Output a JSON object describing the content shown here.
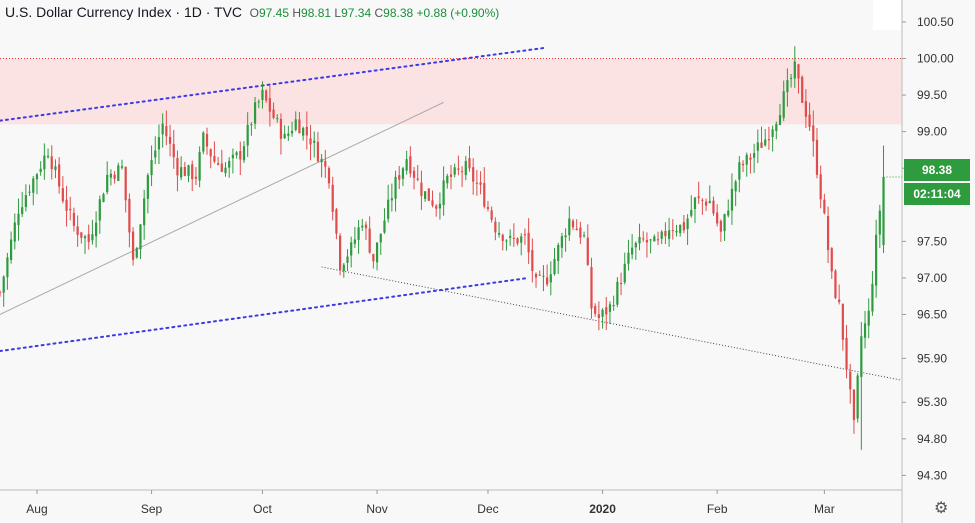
{
  "legend": {
    "symbol": "U.S. Dollar Currency Index · 1D · TVC",
    "open_label": "O",
    "open": "97.45",
    "high_label": "H",
    "high": "98.81",
    "low_label": "L",
    "low": "97.34",
    "close_label": "C",
    "close": "98.38",
    "change": "+0.88 (+0.90%)"
  },
  "price_tag": {
    "last": "98.38",
    "countdown": "02:11:04"
  },
  "colors": {
    "up": "#2e9b3f",
    "down": "#e04b4b",
    "bg": "#f8f8f8",
    "zone": "#fbe3e3",
    "resistance": "#e33",
    "channel": "#3b3be6",
    "trend": "#aaaaaa",
    "support": "#444444"
  },
  "icons": {
    "settings": "gear-icon"
  },
  "chart_data": {
    "type": "candlestick",
    "ylim": [
      94.1,
      100.8
    ],
    "yticks": [
      "100.50",
      "100.00",
      "99.50",
      "99.00",
      "98.50",
      "97.50",
      "97.00",
      "96.50",
      "95.90",
      "95.30",
      "94.80",
      "94.30"
    ],
    "xticks": [
      {
        "label": "Aug",
        "day": 10
      },
      {
        "label": "Sep",
        "day": 41
      },
      {
        "label": "Oct",
        "day": 71
      },
      {
        "label": "Nov",
        "day": 102
      },
      {
        "label": "Dec",
        "day": 132
      },
      {
        "label": "2020",
        "day": 163,
        "bold": true
      },
      {
        "label": "Feb",
        "day": 194
      },
      {
        "label": "Mar",
        "day": 223
      }
    ],
    "x_range": [
      0,
      244
    ],
    "resistance_zone": [
      99.1,
      100.0
    ],
    "resistance_line": 100.0,
    "lines": [
      {
        "name": "upper-channel",
        "style": "blue-dotted",
        "p1": [
          0,
          99.15
        ],
        "p2": [
          148,
          100.15
        ]
      },
      {
        "name": "lower-channel",
        "style": "blue-dotted",
        "p1": [
          0,
          96.0
        ],
        "p2": [
          143,
          97.0
        ]
      },
      {
        "name": "rising-trendline",
        "style": "gray-solid",
        "p1": [
          0,
          96.5
        ],
        "p2": [
          120,
          99.4
        ]
      },
      {
        "name": "support-line",
        "style": "black-dotted",
        "p1": [
          87,
          97.15
        ],
        "p2": [
          244,
          95.6
        ]
      }
    ],
    "anchors": [
      [
        0,
        96.8
      ],
      [
        5,
        97.95
      ],
      [
        10,
        98.45
      ],
      [
        13,
        98.75
      ],
      [
        17,
        98.1
      ],
      [
        20,
        97.7
      ],
      [
        24,
        97.5
      ],
      [
        29,
        98.4
      ],
      [
        33,
        98.5
      ],
      [
        36,
        97.2
      ],
      [
        40,
        98.4
      ],
      [
        44,
        99.1
      ],
      [
        48,
        98.5
      ],
      [
        53,
        98.4
      ],
      [
        55,
        98.9
      ],
      [
        58,
        98.6
      ],
      [
        61,
        98.5
      ],
      [
        65,
        98.7
      ],
      [
        69,
        99.3
      ],
      [
        71,
        99.5
      ],
      [
        74,
        99.2
      ],
      [
        77,
        98.9
      ],
      [
        80,
        99.15
      ],
      [
        84,
        98.9
      ],
      [
        87,
        98.6
      ],
      [
        89,
        98.4
      ],
      [
        92,
        97.2
      ],
      [
        95,
        97.4
      ],
      [
        98,
        97.8
      ],
      [
        101,
        97.25
      ],
      [
        104,
        97.8
      ],
      [
        107,
        98.3
      ],
      [
        110,
        98.65
      ],
      [
        114,
        98.2
      ],
      [
        118,
        98.0
      ],
      [
        121,
        98.35
      ],
      [
        126,
        98.5
      ],
      [
        130,
        98.2
      ],
      [
        134,
        97.7
      ],
      [
        138,
        97.5
      ],
      [
        142,
        97.55
      ],
      [
        145,
        96.9
      ],
      [
        148,
        97.0
      ],
      [
        151,
        97.4
      ],
      [
        154,
        97.8
      ],
      [
        158,
        97.55
      ],
      [
        160,
        96.6
      ],
      [
        162,
        96.45
      ],
      [
        165,
        96.6
      ],
      [
        168,
        97.0
      ],
      [
        171,
        97.4
      ],
      [
        174,
        97.5
      ],
      [
        178,
        97.45
      ],
      [
        181,
        97.7
      ],
      [
        185,
        97.7
      ],
      [
        188,
        98.05
      ],
      [
        192,
        98.05
      ],
      [
        195,
        97.6
      ],
      [
        197,
        98.0
      ],
      [
        200,
        98.5
      ],
      [
        203,
        98.65
      ],
      [
        207,
        98.9
      ],
      [
        210,
        99.2
      ],
      [
        213,
        99.6
      ],
      [
        215,
        99.85
      ],
      [
        217,
        99.45
      ],
      [
        219,
        99.1
      ],
      [
        221,
        98.5
      ],
      [
        223,
        97.8
      ],
      [
        225,
        97.0
      ],
      [
        227,
        96.6
      ],
      [
        229,
        95.8
      ],
      [
        231,
        94.95
      ],
      [
        233,
        96.2
      ],
      [
        235,
        96.5
      ],
      [
        237,
        97.5
      ],
      [
        239,
        98.38
      ]
    ]
  }
}
